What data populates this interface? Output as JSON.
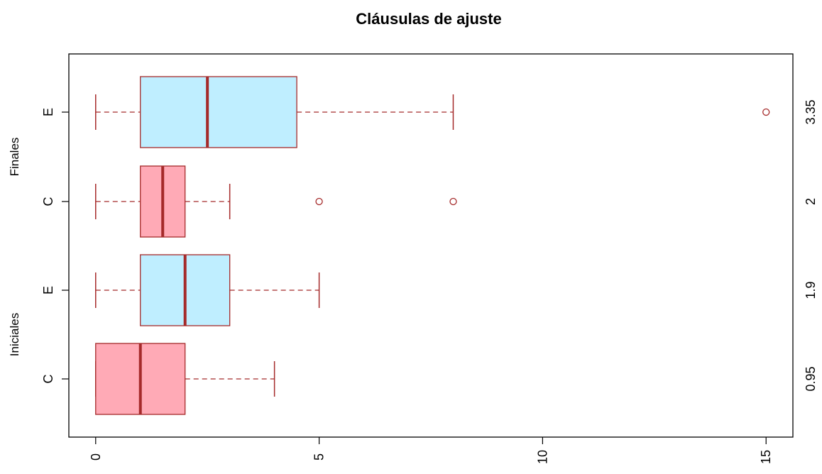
{
  "chart_data": {
    "type": "boxplot",
    "orientation": "horizontal",
    "title": "Cláusulas de ajuste",
    "xlim": [
      -0.6,
      15.6
    ],
    "xticks": [
      "0",
      "5",
      "10",
      "15"
    ],
    "groups": [
      {
        "label": "Iniciales",
        "boxes": [
          {
            "category": "C",
            "min": 0,
            "q1": 0,
            "median": 1,
            "q3": 2,
            "max": 4,
            "outliers": [],
            "right_label": "0.95",
            "fill": "#ffaab6"
          },
          {
            "category": "E",
            "min": 0,
            "q1": 1,
            "median": 2,
            "q3": 3,
            "max": 5,
            "outliers": [],
            "right_label": "1.9",
            "fill": "#bfeeff"
          }
        ]
      },
      {
        "label": "Finales",
        "boxes": [
          {
            "category": "C",
            "min": 0,
            "q1": 1,
            "median": 1.5,
            "q3": 2,
            "max": 3,
            "outliers": [
              5,
              8
            ],
            "right_label": "2",
            "fill": "#ffaab6"
          },
          {
            "category": "E",
            "min": 0,
            "q1": 1,
            "median": 2.5,
            "q3": 4.5,
            "max": 8,
            "outliers": [
              15
            ],
            "right_label": "3.35",
            "fill": "#bfeeff"
          }
        ]
      }
    ],
    "colors": {
      "border": "#a52a2a",
      "median": "#a52a2a",
      "whisker": "#a52a2a",
      "outlier": "#a52a2a",
      "frame": "#000000"
    }
  }
}
